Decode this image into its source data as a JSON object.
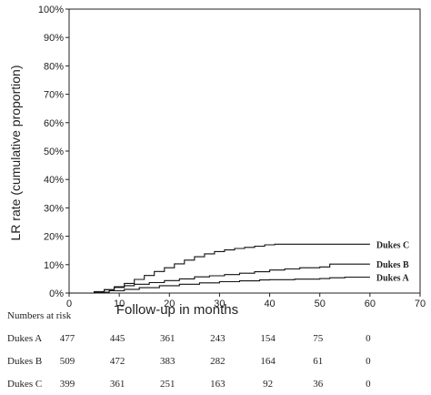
{
  "chart_data": {
    "type": "line",
    "step": true,
    "title": "",
    "xlabel": "Follow-up in months",
    "ylabel": "LR rate (cumulative proportion)",
    "xlim": [
      0,
      70
    ],
    "ylim": [
      0,
      100
    ],
    "x_ticks": [
      0,
      10,
      20,
      30,
      40,
      50,
      60,
      70
    ],
    "y_ticks": [
      0,
      10,
      20,
      30,
      40,
      50,
      60,
      70,
      80,
      90,
      100
    ],
    "y_tick_labels": [
      "0%",
      "10%",
      "20%",
      "30%",
      "40%",
      "50%",
      "60%",
      "70%",
      "80%",
      "90%",
      "100%"
    ],
    "grid": false,
    "legend": "inline labels at line ends",
    "series": [
      {
        "name": "Dukes A",
        "points": [
          [
            0,
            0
          ],
          [
            3,
            0
          ],
          [
            5,
            0.3
          ],
          [
            8,
            0.8
          ],
          [
            11,
            1.3
          ],
          [
            14,
            1.9
          ],
          [
            18,
            2.6
          ],
          [
            22,
            3.1
          ],
          [
            26,
            3.6
          ],
          [
            30,
            4.0
          ],
          [
            34,
            4.3
          ],
          [
            38,
            4.6
          ],
          [
            40,
            4.7
          ],
          [
            45,
            4.9
          ],
          [
            50,
            5.1
          ],
          [
            52,
            5.4
          ],
          [
            55,
            5.6
          ],
          [
            60,
            5.6
          ]
        ]
      },
      {
        "name": "Dukes B",
        "points": [
          [
            0,
            0
          ],
          [
            3,
            0
          ],
          [
            5,
            0.5
          ],
          [
            7,
            1.2
          ],
          [
            9,
            2.0
          ],
          [
            11,
            2.6
          ],
          [
            13,
            3.1
          ],
          [
            16,
            3.7
          ],
          [
            19,
            4.4
          ],
          [
            22,
            5.0
          ],
          [
            25,
            5.7
          ],
          [
            28,
            6.1
          ],
          [
            31,
            6.5
          ],
          [
            34,
            7.0
          ],
          [
            37,
            7.5
          ],
          [
            40,
            8.1
          ],
          [
            43,
            8.5
          ],
          [
            46,
            8.9
          ],
          [
            50,
            9.2
          ],
          [
            52,
            10.2
          ],
          [
            56,
            10.2
          ],
          [
            60,
            10.2
          ]
        ]
      },
      {
        "name": "Dukes C",
        "points": [
          [
            0,
            0
          ],
          [
            3,
            0
          ],
          [
            5,
            0.4
          ],
          [
            7,
            1.2
          ],
          [
            9,
            2.2
          ],
          [
            11,
            3.4
          ],
          [
            13,
            4.8
          ],
          [
            15,
            6.2
          ],
          [
            17,
            7.6
          ],
          [
            19,
            8.9
          ],
          [
            21,
            10.3
          ],
          [
            23,
            11.6
          ],
          [
            25,
            12.8
          ],
          [
            27,
            13.8
          ],
          [
            29,
            14.6
          ],
          [
            31,
            15.2
          ],
          [
            33,
            15.7
          ],
          [
            35,
            16.1
          ],
          [
            37,
            16.5
          ],
          [
            39,
            17.0
          ],
          [
            41,
            17.2
          ],
          [
            50,
            17.2
          ],
          [
            60,
            17.2
          ]
        ]
      }
    ],
    "risk_table": {
      "header": "Numbers at risk",
      "times": [
        0,
        10,
        20,
        30,
        40,
        50,
        60
      ],
      "rows": [
        {
          "name": "Dukes A",
          "values": [
            "477",
            "445",
            "361",
            "243",
            "154",
            "75",
            "0"
          ]
        },
        {
          "name": "Dukes B",
          "values": [
            "509",
            "472",
            "383",
            "282",
            "164",
            "61",
            "0"
          ]
        },
        {
          "name": "Dukes C",
          "values": [
            "399",
            "361",
            "251",
            "163",
            "92",
            "36",
            "0"
          ]
        }
      ]
    }
  }
}
